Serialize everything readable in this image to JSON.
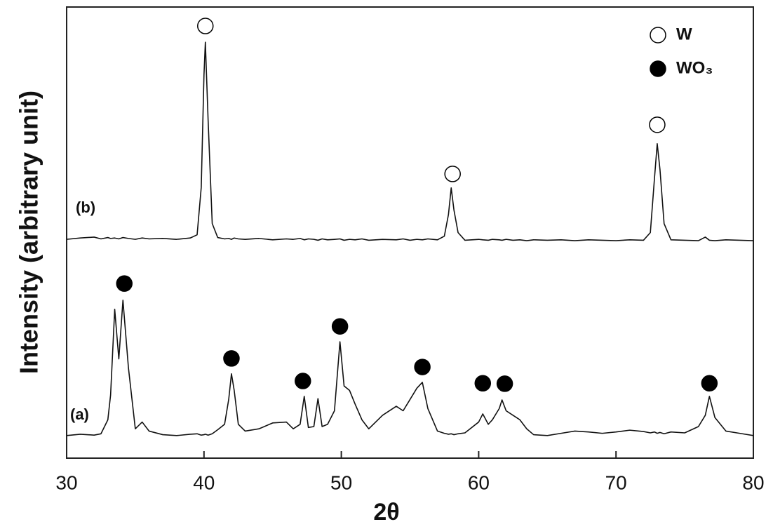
{
  "chart_data": {
    "type": "line",
    "xlabel": "2θ",
    "ylabel": "Intensity (arbitrary unit)",
    "x": [
      30,
      31,
      32,
      32.5,
      33,
      33.2,
      33.5,
      33.8,
      34.1,
      34.5,
      35,
      35.5,
      36,
      37,
      38,
      39,
      39.5,
      39.8,
      40.0,
      40.1,
      40.3,
      40.6,
      41,
      41.5,
      41.8,
      42,
      42.2,
      42.5,
      43,
      44,
      45,
      46,
      46.5,
      47,
      47.3,
      47.6,
      48,
      48.3,
      48.6,
      49,
      49.5,
      49.9,
      50.2,
      50.6,
      51,
      51.5,
      52,
      53,
      54,
      54.5,
      55,
      55.5,
      55.9,
      56.3,
      57,
      57.5,
      57.8,
      58,
      58.2,
      58.5,
      59,
      60,
      60.3,
      60.7,
      61,
      61.5,
      61.7,
      62,
      62.5,
      63,
      63.5,
      64,
      65,
      66,
      67,
      68,
      69,
      70,
      71,
      72,
      72.5,
      72.8,
      73,
      73.2,
      73.5,
      74,
      75,
      76,
      76.5,
      76.8,
      77.2,
      78,
      79,
      80
    ],
    "series": [
      {
        "name": "(a)",
        "color": "#111111",
        "values": [
          5.0,
          5.3,
          5.1,
          5.4,
          8.5,
          14,
          33,
          22,
          35,
          20,
          6.5,
          8.0,
          6.0,
          5.2,
          5.0,
          5.3,
          5.4,
          5.1,
          5.2,
          5.3,
          5.1,
          5.4,
          6.3,
          7.5,
          13,
          18.7,
          15,
          7.5,
          6.0,
          6.5,
          7.8,
          8.0,
          6.5,
          7.5,
          13.7,
          6.8,
          7.0,
          13.2,
          7.0,
          7.5,
          10.5,
          25.8,
          16,
          15,
          12,
          8.5,
          6.5,
          9.5,
          11.5,
          10.5,
          13,
          15.5,
          16.8,
          11,
          6.0,
          5.5,
          5.3,
          5.4,
          5.2,
          5.4,
          5.6,
          8.0,
          9.8,
          7.5,
          8.5,
          11,
          12.9,
          10.5,
          9.5,
          8.5,
          6.5,
          5.2,
          5.0,
          5.5,
          6.0,
          5.8,
          5.5,
          5.8,
          6.2,
          5.9,
          5.6,
          5.8,
          5.5,
          5.7,
          5.4,
          5.8,
          5.6,
          7.0,
          9.5,
          13.7,
          9.0,
          6.0,
          5.5,
          5.0
        ]
      },
      {
        "name": "(b)",
        "color": "#111111",
        "values": [
          48.5,
          48.8,
          49.0,
          48.6,
          48.9,
          48.7,
          48.8,
          48.6,
          48.9,
          48.7,
          48.5,
          48.8,
          48.6,
          48.7,
          48.5,
          48.8,
          49.5,
          60,
          85,
          92.2,
          75,
          52,
          48.9,
          48.6,
          48.7,
          48.5,
          48.8,
          48.6,
          48.5,
          48.7,
          48.4,
          48.6,
          48.5,
          48.7,
          48.4,
          48.6,
          48.5,
          48.3,
          48.6,
          48.4,
          48.5,
          48.6,
          48.3,
          48.5,
          48.4,
          48.6,
          48.3,
          48.5,
          48.4,
          48.6,
          48.3,
          48.5,
          48.4,
          48.6,
          48.4,
          49.2,
          54,
          59.9,
          55,
          50,
          48.3,
          48.5,
          48.4,
          48.3,
          48.5,
          48.4,
          48.3,
          48.5,
          48.3,
          48.4,
          48.2,
          48.4,
          48.3,
          48.4,
          48.2,
          48.4,
          48.3,
          48.2,
          48.4,
          48.3,
          50,
          62,
          69.7,
          64,
          52,
          48.4,
          48.3,
          48.2,
          49,
          48.3,
          48.2,
          48.4,
          48.3,
          48.2
        ]
      }
    ],
    "markers": [
      {
        "name": "W",
        "filled": false,
        "x": [
          40.1,
          58.1,
          73.0
        ],
        "y": [
          95.8,
          63.0,
          73.9
        ]
      },
      {
        "name": "WO₃",
        "filled": true,
        "x": [
          34.2,
          42.0,
          47.2,
          49.9,
          55.9,
          60.3,
          61.9,
          76.8
        ],
        "y": [
          38.7,
          22.1,
          17.1,
          29.2,
          20.2,
          16.6,
          16.5,
          16.6
        ]
      }
    ],
    "xlim": [
      30,
      80
    ],
    "xticks": [
      30,
      40,
      50,
      60,
      70,
      80
    ],
    "ylim": [
      0,
      100
    ]
  }
}
